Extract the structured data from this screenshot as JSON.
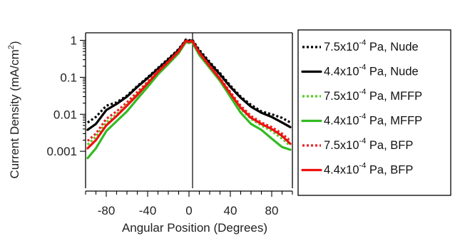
{
  "chart_data": {
    "type": "line",
    "title": "",
    "xlabel": "Angular Position (Degrees)",
    "ylabel_main": "Current Density (mA/cm",
    "ylabel_sup": "2",
    "ylabel_close": ")",
    "xlim": [
      -100,
      100
    ],
    "ylim": [
      0.0001,
      1.6
    ],
    "yscale": "log",
    "legend_position": "right",
    "x_ticks": [
      {
        "value": -80,
        "label": "-80"
      },
      {
        "value": -40,
        "label": "-40"
      },
      {
        "value": 0,
        "label": "0"
      },
      {
        "value": 40,
        "label": "40"
      },
      {
        "value": 80,
        "label": "80"
      }
    ],
    "y_ticks": [
      {
        "value": 1,
        "label": "1"
      },
      {
        "value": 0.1,
        "label": "0.1"
      },
      {
        "value": 0.01,
        "label": "0.01"
      },
      {
        "value": 0.001,
        "label": "0.001"
      }
    ],
    "series": [
      {
        "label_pre": "7.5x10",
        "label_exp": "-4",
        "label_post": " Pa, Nude",
        "color": "#000000",
        "dash": "dotted",
        "x": [
          -98,
          -90,
          -80,
          -70,
          -60,
          -50,
          -40,
          -30,
          -20,
          -10,
          -3,
          0,
          3,
          10,
          20,
          30,
          40,
          50,
          60,
          70,
          80,
          90,
          98
        ],
        "y": [
          0.006,
          0.0085,
          0.017,
          0.021,
          0.032,
          0.058,
          0.1,
          0.18,
          0.32,
          0.58,
          1.05,
          1.0,
          1.05,
          0.55,
          0.26,
          0.13,
          0.06,
          0.03,
          0.018,
          0.012,
          0.01,
          0.008,
          0.006
        ]
      },
      {
        "label_pre": "4.4x10",
        "label_exp": "-4",
        "label_post": " Pa, Nude",
        "color": "#000000",
        "dash": "solid",
        "x": [
          -98,
          -90,
          -80,
          -70,
          -60,
          -50,
          -40,
          -30,
          -20,
          -10,
          -3,
          0,
          3,
          10,
          20,
          30,
          40,
          50,
          60,
          70,
          80,
          90,
          98
        ],
        "y": [
          0.0038,
          0.0055,
          0.013,
          0.019,
          0.03,
          0.055,
          0.095,
          0.17,
          0.3,
          0.55,
          1.0,
          0.95,
          1.0,
          0.5,
          0.24,
          0.12,
          0.055,
          0.028,
          0.016,
          0.011,
          0.0085,
          0.006,
          0.0045
        ]
      },
      {
        "label_pre": "7.5x10",
        "label_exp": "-4",
        "label_post": " Pa, MFFP",
        "color": "#55cc22",
        "dash": "dotted",
        "x": [
          -98,
          -90,
          -80,
          -70,
          -60,
          -50,
          -40,
          -30,
          -20,
          -10,
          -3,
          0,
          3,
          10,
          20,
          30,
          40,
          50,
          60,
          70,
          80,
          90,
          98
        ],
        "y": [
          0.0015,
          0.0025,
          0.006,
          0.01,
          0.018,
          0.035,
          0.07,
          0.14,
          0.26,
          0.5,
          0.95,
          0.9,
          0.95,
          0.45,
          0.2,
          0.09,
          0.035,
          0.014,
          0.0075,
          0.005,
          0.0035,
          0.0022,
          0.0014
        ]
      },
      {
        "label_pre": "4.4x10",
        "label_exp": "-4",
        "label_post": " Pa, MFFP",
        "color": "#33bb22",
        "dash": "solid",
        "x": [
          -98,
          -90,
          -80,
          -70,
          -60,
          -50,
          -40,
          -30,
          -20,
          -10,
          -3,
          0,
          3,
          10,
          20,
          30,
          40,
          50,
          60,
          70,
          80,
          90,
          98
        ],
        "y": [
          0.00065,
          0.0012,
          0.0035,
          0.0065,
          0.012,
          0.026,
          0.055,
          0.12,
          0.23,
          0.45,
          0.9,
          0.85,
          0.9,
          0.4,
          0.18,
          0.08,
          0.03,
          0.011,
          0.0055,
          0.0038,
          0.0022,
          0.0013,
          0.0011
        ]
      },
      {
        "label_pre": "7.5x10",
        "label_exp": "-4",
        "label_post": " Pa, BFP",
        "color": "#ee2222",
        "dash": "dotted",
        "x": [
          -98,
          -90,
          -80,
          -70,
          -60,
          -50,
          -40,
          -30,
          -20,
          -10,
          -3,
          0,
          3,
          10,
          20,
          30,
          40,
          50,
          60,
          70,
          80,
          90,
          98
        ],
        "y": [
          0.0019,
          0.003,
          0.0075,
          0.012,
          0.021,
          0.04,
          0.075,
          0.15,
          0.27,
          0.52,
          0.98,
          0.92,
          0.98,
          0.47,
          0.21,
          0.095,
          0.04,
          0.017,
          0.009,
          0.006,
          0.0045,
          0.003,
          0.0019
        ]
      },
      {
        "label_pre": "4.4x10",
        "label_exp": "-4",
        "label_post": " Pa, BFP",
        "color": "#ee1111",
        "dash": "solid",
        "x": [
          -98,
          -90,
          -80,
          -70,
          -60,
          -50,
          -40,
          -30,
          -20,
          -10,
          -3,
          0,
          3,
          10,
          20,
          30,
          40,
          50,
          60,
          70,
          80,
          90,
          98
        ],
        "y": [
          0.0012,
          0.002,
          0.005,
          0.009,
          0.017,
          0.033,
          0.068,
          0.14,
          0.26,
          0.5,
          0.97,
          0.9,
          0.97,
          0.46,
          0.2,
          0.09,
          0.036,
          0.015,
          0.008,
          0.0055,
          0.004,
          0.0026,
          0.0016
        ]
      }
    ]
  }
}
